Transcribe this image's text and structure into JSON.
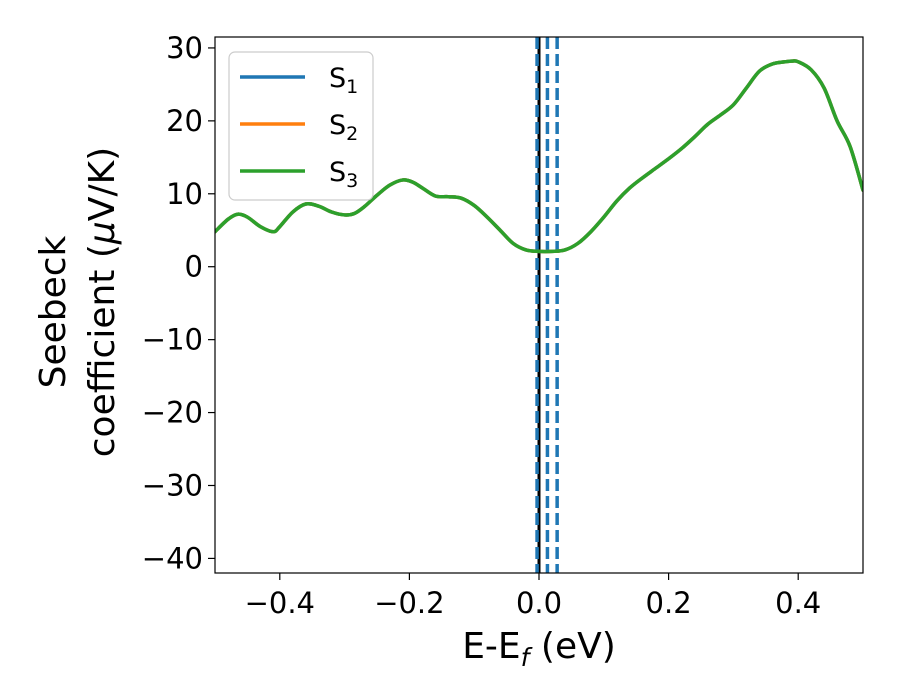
{
  "chart_data": {
    "type": "line",
    "title": "",
    "xlabel": {
      "main": "E-E",
      "sub": "f",
      "tail": " (eV)"
    },
    "ylabel": {
      "line1": "Seebeck",
      "line2_prefix": "coefficient  (",
      "line2_mu": "μ",
      "line2_suffix": "V/K)"
    },
    "xlim": [
      -0.5,
      0.5
    ],
    "ylim": [
      -42,
      31.5
    ],
    "xticks": [
      -0.4,
      -0.2,
      0.0,
      0.2,
      0.4
    ],
    "xtick_labels": [
      "−0.4",
      "−0.2",
      "0.0",
      "0.2",
      "0.4"
    ],
    "yticks": [
      -40,
      -30,
      -20,
      -10,
      0,
      10,
      20,
      30
    ],
    "ytick_labels": [
      "−40",
      "−30",
      "−20",
      "−10",
      "0",
      "10",
      "20",
      "30"
    ],
    "grid": false,
    "legend_position": "top-left",
    "x": [
      -0.5,
      -0.48,
      -0.465,
      -0.45,
      -0.43,
      -0.41,
      -0.4,
      -0.38,
      -0.36,
      -0.34,
      -0.32,
      -0.3,
      -0.285,
      -0.27,
      -0.25,
      -0.23,
      -0.21,
      -0.195,
      -0.18,
      -0.16,
      -0.14,
      -0.12,
      -0.1,
      -0.08,
      -0.06,
      -0.04,
      -0.02,
      0.0,
      0.02,
      0.04,
      0.06,
      0.08,
      0.1,
      0.12,
      0.14,
      0.16,
      0.18,
      0.2,
      0.22,
      0.24,
      0.26,
      0.28,
      0.3,
      0.32,
      0.34,
      0.36,
      0.38,
      0.39,
      0.4,
      0.42,
      0.44,
      0.46,
      0.48,
      0.5
    ],
    "series": [
      {
        "name": "S1",
        "label_main": "S",
        "label_sub": "1",
        "color": "#1f77b4",
        "values": [
          4.8,
          6.5,
          7.2,
          6.8,
          5.5,
          4.8,
          5.5,
          7.5,
          8.6,
          8.3,
          7.5,
          7.1,
          7.3,
          8.2,
          9.8,
          11.2,
          11.9,
          11.6,
          10.8,
          9.7,
          9.6,
          9.4,
          8.4,
          6.8,
          5.0,
          3.2,
          2.3,
          2.1,
          2.1,
          2.3,
          3.2,
          4.8,
          6.8,
          9.0,
          10.8,
          12.2,
          13.5,
          14.8,
          16.2,
          17.8,
          19.5,
          20.8,
          22.2,
          24.5,
          26.8,
          27.8,
          28.1,
          28.2,
          28.1,
          27.0,
          24.5,
          20.0,
          16.5,
          10.5
        ]
      },
      {
        "name": "S2",
        "label_main": "S",
        "label_sub": "2",
        "color": "#ff7f0e",
        "values": [
          4.8,
          6.5,
          7.2,
          6.8,
          5.5,
          4.8,
          5.5,
          7.5,
          8.6,
          8.3,
          7.5,
          7.1,
          7.3,
          8.2,
          9.8,
          11.2,
          11.9,
          11.6,
          10.8,
          9.7,
          9.6,
          9.4,
          8.4,
          6.8,
          5.0,
          3.2,
          2.3,
          2.1,
          2.1,
          2.3,
          3.2,
          4.8,
          6.8,
          9.0,
          10.8,
          12.2,
          13.5,
          14.8,
          16.2,
          17.8,
          19.5,
          20.8,
          22.2,
          24.5,
          26.8,
          27.8,
          28.1,
          28.2,
          28.1,
          27.0,
          24.5,
          20.0,
          16.5,
          10.5
        ]
      },
      {
        "name": "S3",
        "label_main": "S",
        "label_sub": "3",
        "color": "#2ca02c",
        "values": [
          4.8,
          6.5,
          7.2,
          6.8,
          5.5,
          4.8,
          5.5,
          7.5,
          8.6,
          8.3,
          7.5,
          7.1,
          7.3,
          8.2,
          9.8,
          11.2,
          11.9,
          11.6,
          10.8,
          9.7,
          9.6,
          9.4,
          8.4,
          6.8,
          5.0,
          3.2,
          2.3,
          2.1,
          2.1,
          2.3,
          3.2,
          4.8,
          6.8,
          9.0,
          10.8,
          12.2,
          13.5,
          14.8,
          16.2,
          17.8,
          19.5,
          20.8,
          22.2,
          24.5,
          26.8,
          27.8,
          28.1,
          28.2,
          28.1,
          27.0,
          24.5,
          20.0,
          16.5,
          10.5
        ]
      }
    ],
    "vertical_lines": [
      {
        "x": 0.0,
        "color": "#000000",
        "style": "solid"
      },
      {
        "x": -0.003,
        "color": "#1f77b4",
        "style": "dashed"
      },
      {
        "x": 0.013,
        "color": "#1f77b4",
        "style": "dashed"
      },
      {
        "x": 0.028,
        "color": "#1f77b4",
        "style": "dashed"
      }
    ]
  }
}
